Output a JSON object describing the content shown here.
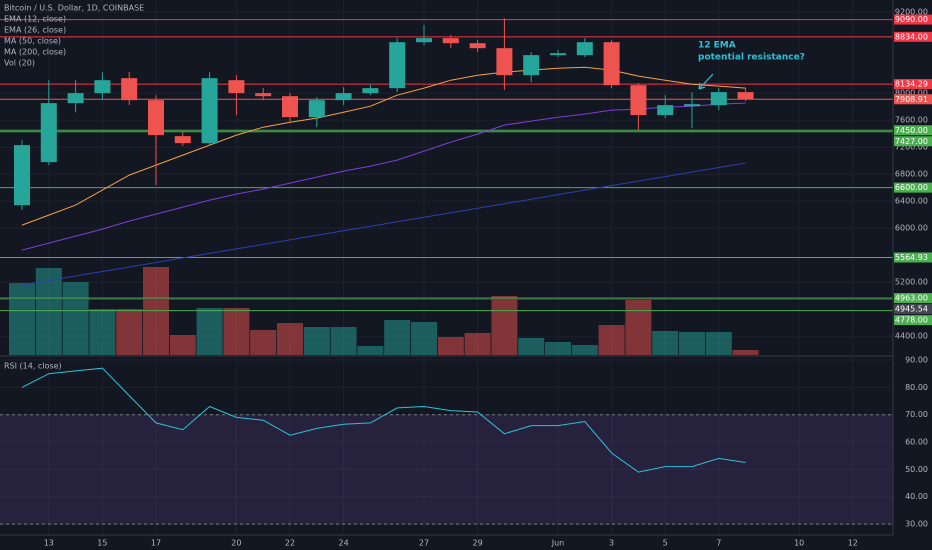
{
  "chart_data": {
    "type": "candlestick",
    "title": "Bitcoin / U.S. Dollar, 1D, COINBASE",
    "categories": [
      null,
      "13",
      null,
      "15",
      null,
      "17",
      null,
      null,
      "20",
      null,
      "22",
      null,
      "24",
      null,
      null,
      "27",
      null,
      "29",
      null,
      null,
      "Jun",
      null,
      "3",
      null,
      "5",
      null,
      "7",
      null,
      null,
      "10",
      null,
      "12",
      null
    ],
    "open": [
      6340,
      6978,
      7852,
      8000,
      8222,
      7896,
      7363,
      7259,
      8192,
      8000,
      7955,
      7644,
      7896,
      8000,
      8074,
      8755,
      8815,
      8740,
      8666,
      8266,
      8563,
      8563,
      8755,
      8118,
      7674,
      7807,
      7822,
      8015,
      null,
      null,
      null,
      null,
      null
    ],
    "high": [
      7300,
      8192,
      8192,
      8311,
      8311,
      7970,
      7422,
      8311,
      8266,
      8074,
      8000,
      7940,
      8089,
      8133,
      8815,
      9007,
      8859,
      8785,
      9110,
      8607,
      8637,
      8815,
      8785,
      8148,
      7970,
      8015,
      8074,
      8074,
      null,
      null,
      null,
      null,
      null
    ],
    "low": [
      6270,
      6934,
      7718,
      7896,
      7822,
      6637,
      7215,
      7230,
      7674,
      7896,
      7570,
      7496,
      7822,
      7970,
      8015,
      8711,
      8666,
      8607,
      8044,
      8163,
      8533,
      8533,
      8074,
      7452,
      7630,
      7481,
      7748,
      7880,
      null,
      null,
      null,
      null,
      null
    ],
    "close": [
      7230,
      7852,
      8000,
      8192,
      7896,
      7378,
      7259,
      8222,
      8000,
      7955,
      7644,
      7896,
      8000,
      8074,
      8755,
      8815,
      8740,
      8666,
      8266,
      8563,
      8592,
      8755,
      8118,
      7674,
      7822,
      7837,
      8015,
      7908.91,
      null,
      null,
      null,
      null,
      null
    ],
    "up_color": "#26a69a",
    "down_color": "#ef5350",
    "ylim": [
      4120,
      9380
    ],
    "yticks": [
      {
        "value": 9200,
        "label": "9200.00"
      },
      {
        "value": 8000,
        "label": "8000.00"
      },
      {
        "value": 7600,
        "label": "7600.00"
      },
      {
        "value": 7200,
        "label": "7200.00"
      },
      {
        "value": 6800,
        "label": "6800.00"
      },
      {
        "value": 6400,
        "label": "6400.00"
      },
      {
        "value": 6000,
        "label": "6000.00"
      },
      {
        "value": 5200,
        "label": "5200.00"
      },
      {
        "value": 4400,
        "label": "4400.00"
      }
    ],
    "grid": true,
    "levels": [
      {
        "value": 9090,
        "label": "9090.00",
        "color": "#f23645"
      },
      {
        "value": 8834,
        "label": "8834.00",
        "color": "#f23645"
      },
      {
        "value": 8134.29,
        "label": "8134.29",
        "color": "#f23645"
      },
      {
        "value": 7908.91,
        "label": "7908.91",
        "color": "#ef5350"
      },
      {
        "value": 7450,
        "label": "7450.00",
        "color": "#4caf50"
      },
      {
        "value": 7427,
        "label": "7427.00",
        "color": "#4caf50"
      },
      {
        "value": 6600,
        "label": "6600.00",
        "color": "#4caf50"
      },
      {
        "value": 5564.93,
        "label": "5564.93",
        "color": "#4caf50"
      },
      {
        "value": 4963,
        "label": "4963.00",
        "color": "#4caf50"
      },
      {
        "value": 4945.54,
        "label": "4945.54",
        "color": "#434651"
      },
      {
        "value": 4778,
        "label": "4778.00",
        "color": "#4caf50"
      }
    ],
    "series": [
      {
        "name": "EMA (12, close)",
        "color": "#f5a146",
        "values": [
          6045,
          6193,
          6341,
          6563,
          6785,
          6934,
          7082,
          7230,
          7378,
          7496,
          7570,
          7630,
          7718,
          7807,
          7970,
          8074,
          8192,
          8266,
          8311,
          8341,
          8370,
          8385,
          8341,
          8252,
          8192,
          8133,
          8104,
          8074,
          null,
          null,
          null,
          null,
          null
        ]
      },
      {
        "name": "MA (50, close)",
        "color": "#7b3fd6",
        "values": [
          5675,
          5778,
          5882,
          5986,
          6104,
          6208,
          6312,
          6415,
          6504,
          6578,
          6667,
          6756,
          6845,
          6919,
          7008,
          7141,
          7274,
          7393,
          7526,
          7585,
          7644,
          7689,
          7748,
          7763,
          7793,
          7807,
          7837,
          7852,
          null,
          null,
          null,
          null,
          null
        ]
      },
      {
        "name": "MA (200, close)",
        "color": "#2b3fae",
        "values": [
          5156,
          5223,
          5290,
          5357,
          5424,
          5491,
          5558,
          5625,
          5692,
          5759,
          5826,
          5893,
          5960,
          6027,
          6094,
          6161,
          6228,
          6295,
          6362,
          6429,
          6496,
          6563,
          6630,
          6697,
          6764,
          6831,
          6898,
          6965,
          null,
          null,
          null,
          null,
          null
        ]
      }
    ],
    "other_studies": [
      "EMA (26, close)",
      "Vol (20)"
    ],
    "volume": {
      "ylim": [
        0,
        100
      ],
      "values": [
        72,
        87,
        73,
        46,
        46,
        88,
        20,
        47,
        47,
        25,
        32,
        28,
        28,
        9,
        35,
        33,
        18,
        22,
        59,
        17,
        13,
        10,
        30,
        55,
        24,
        23,
        23,
        5,
        null,
        null,
        null,
        null,
        null
      ]
    },
    "rsi": {
      "name": "RSI (14, close)",
      "color": "#2ec1d6",
      "ylim": [
        26,
        91.1
      ],
      "band": [
        30,
        70
      ],
      "yticks": [
        {
          "value": 90,
          "label": "90.00"
        },
        {
          "value": 80,
          "label": "80.00"
        },
        {
          "value": 70,
          "label": "70.00"
        },
        {
          "value": 60,
          "label": "60.00"
        },
        {
          "value": 50,
          "label": "50.00"
        },
        {
          "value": 40,
          "label": "40.00"
        },
        {
          "value": 30,
          "label": "30.00"
        }
      ],
      "values": [
        80,
        85,
        86,
        87,
        77,
        67,
        64.5,
        73,
        69,
        68,
        62.5,
        65,
        66.5,
        67,
        72.5,
        73,
        71.5,
        71,
        63,
        66,
        66,
        67.5,
        56,
        49,
        51,
        51,
        54,
        52.5,
        null,
        null,
        null,
        null,
        null
      ]
    },
    "annotation": [
      "12 EMA",
      "potential resistance?"
    ]
  }
}
